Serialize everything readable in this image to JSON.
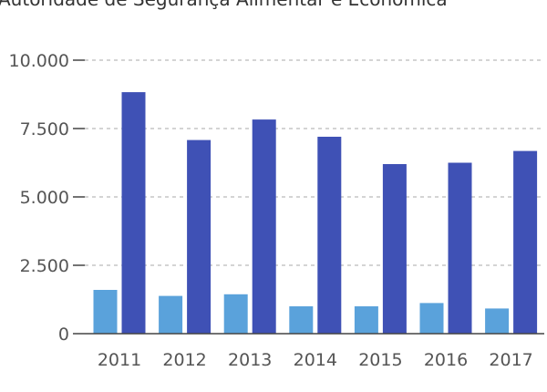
{
  "chart_data": {
    "type": "bar",
    "title": "Autoridade de Segurança Alimentar e Económica",
    "categories": [
      "2011",
      "2012",
      "2013",
      "2014",
      "2015",
      "2016",
      "2017"
    ],
    "series": [
      {
        "values": [
          1600,
          1380,
          1440,
          1000,
          1000,
          1120,
          920
        ],
        "color": "#5aa2db"
      },
      {
        "values": [
          8830,
          7080,
          7830,
          7200,
          6200,
          6250,
          6680
        ],
        "color": "#3f51b5"
      }
    ],
    "yticks": [
      "0",
      "2.500",
      "5.000",
      "7.500",
      "10.000"
    ],
    "ylim": [
      0,
      10000
    ],
    "grid": true
  }
}
